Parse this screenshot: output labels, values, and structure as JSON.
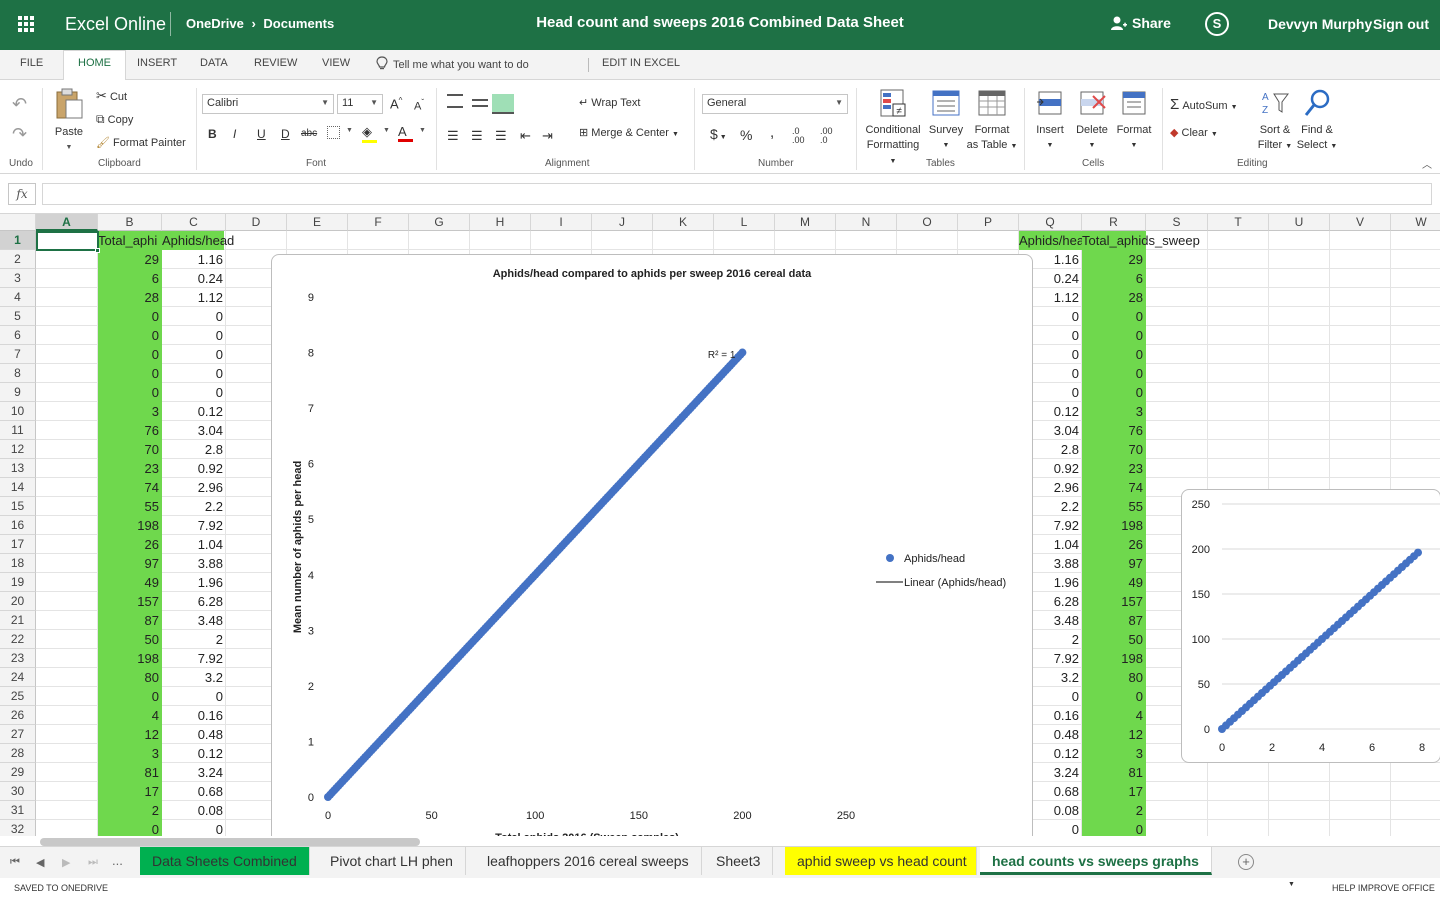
{
  "topbar": {
    "app_name": "Excel Online",
    "breadcrumb_root": "OneDrive",
    "breadcrumb_sep": "›",
    "breadcrumb_folder": "Documents",
    "doc_title": "Head count and sweeps 2016 Combined Data Sheet",
    "share_label": "Share",
    "skype_label": "S",
    "user_name": "Devvyn Murphy",
    "signout_label": "Sign out"
  },
  "menu": {
    "file": "FILE",
    "home": "HOME",
    "insert": "INSERT",
    "data": "DATA",
    "review": "REVIEW",
    "view": "VIEW",
    "tell_me": "Tell me what you want to do",
    "edit_in_excel": "EDIT IN EXCEL"
  },
  "ribbon": {
    "undo_group": "Undo",
    "paste": "Paste",
    "cut": "Cut",
    "copy": "Copy",
    "format_painter": "Format Painter",
    "clipboard_group": "Clipboard",
    "font_name": "Calibri",
    "font_size": "11",
    "font_group": "Font",
    "bold": "B",
    "italic": "I",
    "underline": "U",
    "double_underline": "D",
    "strike": "abc",
    "wrap_text": "Wrap Text",
    "merge_center": "Merge & Center",
    "alignment_group": "Alignment",
    "number_format": "General",
    "number_group": "Number",
    "currency": "$",
    "percent": "%",
    "comma": ",",
    "inc_decimal": ".0 .00",
    "dec_decimal": ".00 .0",
    "conditional_formatting_1": "Conditional",
    "conditional_formatting_2": "Formatting",
    "survey": "Survey",
    "format_as_table_1": "Format",
    "format_as_table_2": "as Table",
    "tables_group": "Tables",
    "insert": "Insert",
    "delete": "Delete",
    "format": "Format",
    "cells_group": "Cells",
    "autosum": "AutoSum",
    "clear": "Clear",
    "sort_filter_1": "Sort &",
    "sort_filter_2": "Filter",
    "find_select_1": "Find &",
    "find_select_2": "Select",
    "editing_group": "Editing"
  },
  "formula_bar": {
    "fx": "fx",
    "value": ""
  },
  "columns": [
    "A",
    "B",
    "C",
    "D",
    "E",
    "F",
    "G",
    "H",
    "I",
    "J",
    "K",
    "L",
    "M",
    "N",
    "O",
    "P",
    "Q",
    "R",
    "S",
    "T",
    "U",
    "V",
    "W"
  ],
  "rows": [
    "1",
    "2",
    "3",
    "4",
    "5",
    "6",
    "7",
    "8",
    "9",
    "10",
    "11",
    "12",
    "13",
    "14",
    "15",
    "16",
    "17",
    "18",
    "19",
    "20",
    "21",
    "22",
    "23",
    "24",
    "25",
    "26",
    "27",
    "28",
    "29",
    "30",
    "31",
    "32"
  ],
  "sheet": {
    "b_header": "Total_aphi",
    "c_header": "Aphids/head",
    "q_header": "Aphids/hea",
    "r_header": "Total_aphids_sweep",
    "b_values": [
      "29",
      "6",
      "28",
      "0",
      "0",
      "0",
      "0",
      "0",
      "3",
      "76",
      "70",
      "23",
      "74",
      "55",
      "198",
      "26",
      "97",
      "49",
      "157",
      "87",
      "50",
      "198",
      "80",
      "0",
      "4",
      "12",
      "3",
      "81",
      "17",
      "2",
      "0"
    ],
    "c_values": [
      "1.16",
      "0.24",
      "1.12",
      "0",
      "0",
      "0",
      "0",
      "0",
      "0.12",
      "3.04",
      "2.8",
      "0.92",
      "2.96",
      "2.2",
      "7.92",
      "1.04",
      "3.88",
      "1.96",
      "6.28",
      "3.48",
      "2",
      "7.92",
      "3.2",
      "0",
      "0.16",
      "0.48",
      "0.12",
      "3.24",
      "0.68",
      "0.08",
      "0"
    ]
  },
  "chart_data": [
    {
      "type": "scatter",
      "title": "Aphids/head compared to aphids per sweep 2016 cereal data",
      "xlabel": "Total aphids 2016 (Sweep samples)",
      "ylabel": "Mean number of aphids per head",
      "xlim": [
        0,
        250
      ],
      "ylim": [
        0,
        9
      ],
      "x_ticks": [
        "0",
        "50",
        "100",
        "150",
        "200",
        "250"
      ],
      "y_ticks": [
        "0",
        "1",
        "2",
        "3",
        "4",
        "5",
        "6",
        "7",
        "8",
        "9"
      ],
      "annotation": "R² = 1",
      "legend": {
        "position": "right",
        "series": "Aphids/head",
        "trendline": "Linear (Aphids/head)"
      },
      "series_color": "#4472c4",
      "x": [
        0,
        1,
        2,
        3,
        4,
        5,
        6,
        7,
        8,
        9,
        10,
        11,
        12,
        13,
        14,
        15,
        16,
        17,
        18,
        19,
        20,
        21,
        22,
        23,
        24,
        25,
        26,
        27,
        28,
        29,
        30,
        31,
        32,
        33,
        34,
        35,
        36,
        37,
        38,
        39,
        40,
        41,
        42,
        43,
        44,
        45,
        46,
        47,
        48,
        49,
        50,
        51,
        52,
        53,
        54,
        55,
        56,
        57,
        58,
        59,
        60,
        61,
        62,
        63,
        64,
        65,
        66,
        67,
        68,
        69,
        70,
        71,
        72,
        73,
        74,
        75,
        76,
        77,
        78,
        79,
        80,
        81,
        82,
        83,
        84,
        85,
        86,
        87,
        88,
        89,
        90,
        91,
        92,
        93,
        94,
        95,
        96,
        97,
        98,
        99,
        100,
        101,
        102,
        103,
        104,
        105,
        106,
        107,
        108,
        109,
        110,
        111,
        112,
        113,
        114,
        115,
        116,
        117,
        118,
        119,
        120,
        121,
        122,
        123,
        124,
        125,
        126,
        127,
        128,
        129,
        130,
        131,
        132,
        133,
        134,
        135,
        136,
        137,
        138,
        139,
        140,
        141,
        142,
        143,
        144,
        145,
        146,
        147,
        148,
        149,
        150,
        151,
        152,
        153,
        154,
        155,
        156,
        157,
        158,
        159,
        160,
        161,
        162,
        163,
        164,
        165,
        166,
        167,
        168,
        169,
        170,
        171,
        172,
        173,
        174,
        175,
        176,
        177,
        178,
        179,
        180,
        181,
        182,
        183,
        184,
        185,
        186,
        187,
        188,
        189,
        190,
        191,
        192,
        193,
        194,
        195,
        196,
        197,
        198,
        199,
        200
      ],
      "trend": {
        "x": [
          0,
          200
        ],
        "y": [
          0,
          8
        ]
      }
    },
    {
      "type": "scatter",
      "title": "",
      "xlim": [
        0,
        8
      ],
      "ylim": [
        0,
        250
      ],
      "x_ticks": [
        "0",
        "2",
        "4",
        "6",
        "8"
      ],
      "y_ticks": [
        "0",
        "50",
        "100",
        "150",
        "200",
        "250"
      ],
      "series_color": "#4472c4"
    }
  ],
  "sheet_tabs": {
    "more": "...",
    "t1": "Data Sheets Combined",
    "t2": "Pivot chart LH phen",
    "t3": "leafhoppers 2016 cereal sweeps",
    "t4": "Sheet3",
    "t5": "aphid sweep vs head count",
    "t6": "head counts vs sweeps graphs",
    "add": "+"
  },
  "status": {
    "saved": "SAVED TO ONEDRIVE",
    "help": "HELP IMPROVE OFFICE"
  }
}
